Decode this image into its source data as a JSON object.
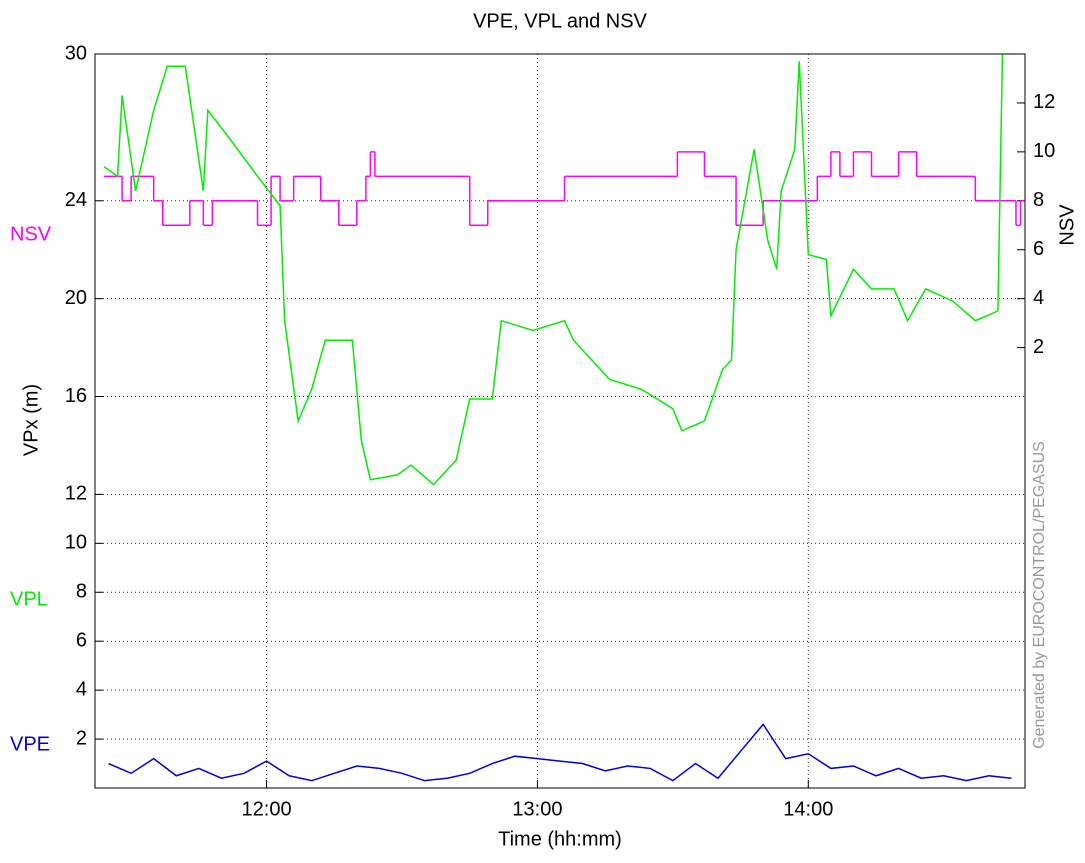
{
  "chart_data": {
    "type": "line",
    "title": "VPE, VPL and NSV",
    "xlabel": "Time (hh:mm)",
    "ylabel": "VPx  (m)",
    "y2label": "NSV",
    "annotation": "Generated by EUROCONTROL/PEGASUS",
    "xlim": [
      "11:22",
      "14:48"
    ],
    "xticks": [
      "12:00",
      "13:00",
      "14:00"
    ],
    "ylim": [
      0,
      30
    ],
    "yticks": [
      2,
      4,
      6,
      8,
      10,
      12,
      16,
      20,
      24,
      30
    ],
    "y2lim": [
      -16,
      14
    ],
    "y2ticks": [
      2,
      4,
      6,
      8,
      10,
      12
    ],
    "grid": true,
    "series": [
      {
        "name": "NSV",
        "color": "#ff00ff",
        "axis": "y2",
        "step": true,
        "x": [
          "11:24",
          "11:28",
          "11:30",
          "11:35",
          "11:37",
          "11:43",
          "11:46",
          "11:48",
          "11:58",
          "12:01",
          "12:03",
          "12:06",
          "12:12",
          "12:16",
          "12:20",
          "12:22",
          "12:23",
          "12:24",
          "12:45",
          "12:49",
          "13:06",
          "13:31",
          "13:37",
          "13:44",
          "13:50",
          "13:58",
          "14:02",
          "14:05",
          "14:07",
          "14:10",
          "14:14",
          "14:20",
          "14:24",
          "14:37",
          "14:46",
          "14:47"
        ],
        "values": [
          9,
          8,
          9,
          8,
          7,
          8,
          7,
          8,
          7,
          9,
          8,
          9,
          8,
          7,
          8,
          9,
          10,
          9,
          7,
          8,
          9,
          10,
          9,
          7,
          8,
          8,
          9,
          10,
          9,
          10,
          9,
          10,
          9,
          8,
          7,
          8
        ]
      },
      {
        "name": "VPL",
        "color": "#00ee00",
        "x": [
          "11:24",
          "11:27",
          "11:28",
          "11:31",
          "11:35",
          "11:38",
          "11:42",
          "11:46",
          "11:47",
          "11:52",
          "11:58",
          "12:03",
          "12:04",
          "12:07",
          "12:10",
          "12:13",
          "12:19",
          "12:21",
          "12:23",
          "12:29",
          "12:32",
          "12:37",
          "12:42",
          "12:45",
          "12:50",
          "12:52",
          "12:59",
          "13:06",
          "13:08",
          "13:12",
          "13:16",
          "13:23",
          "13:30",
          "13:32",
          "13:37",
          "13:41",
          "13:43",
          "13:44",
          "13:48",
          "13:51",
          "13:53",
          "13:54",
          "13:57",
          "13:58",
          "14:00",
          "14:04",
          "14:05",
          "14:10",
          "14:14",
          "14:19",
          "14:22",
          "14:26",
          "14:32",
          "14:37",
          "14:42",
          "14:43"
        ],
        "values": [
          25.4,
          25.0,
          28.3,
          24.4,
          27.7,
          29.5,
          29.5,
          24.4,
          27.7,
          26.5,
          25.0,
          23.8,
          19.1,
          15.0,
          16.3,
          18.3,
          18.3,
          14.2,
          12.6,
          12.8,
          13.2,
          12.4,
          13.4,
          15.9,
          15.9,
          19.1,
          18.7,
          19.1,
          18.3,
          17.5,
          16.7,
          16.3,
          15.5,
          14.6,
          15.0,
          17.1,
          17.5,
          22.0,
          26.1,
          22.4,
          21.2,
          24.4,
          26.1,
          29.7,
          21.8,
          21.6,
          19.3,
          21.2,
          20.4,
          20.4,
          19.1,
          20.4,
          19.9,
          19.1,
          19.5,
          30
        ]
      },
      {
        "name": "VPE",
        "color": "#0000dd",
        "x": [
          "11:25",
          "11:30",
          "11:35",
          "11:40",
          "11:45",
          "11:50",
          "11:55",
          "12:00",
          "12:05",
          "12:10",
          "12:15",
          "12:20",
          "12:25",
          "12:30",
          "12:35",
          "12:40",
          "12:45",
          "12:50",
          "12:55",
          "13:00",
          "13:05",
          "13:10",
          "13:15",
          "13:20",
          "13:25",
          "13:30",
          "13:35",
          "13:40",
          "13:45",
          "13:50",
          "13:55",
          "14:00",
          "14:05",
          "14:10",
          "14:15",
          "14:20",
          "14:25",
          "14:30",
          "14:35",
          "14:40",
          "14:45"
        ],
        "values": [
          1.0,
          0.6,
          1.2,
          0.5,
          0.8,
          0.4,
          0.6,
          1.1,
          0.5,
          0.3,
          0.6,
          0.9,
          0.8,
          0.6,
          0.3,
          0.4,
          0.6,
          1.0,
          1.3,
          1.2,
          1.1,
          1.0,
          0.7,
          0.9,
          0.8,
          0.3,
          1.0,
          0.4,
          1.5,
          2.6,
          1.2,
          1.4,
          0.8,
          0.9,
          0.5,
          0.8,
          0.4,
          0.5,
          0.3,
          0.5,
          0.4
        ]
      }
    ]
  }
}
